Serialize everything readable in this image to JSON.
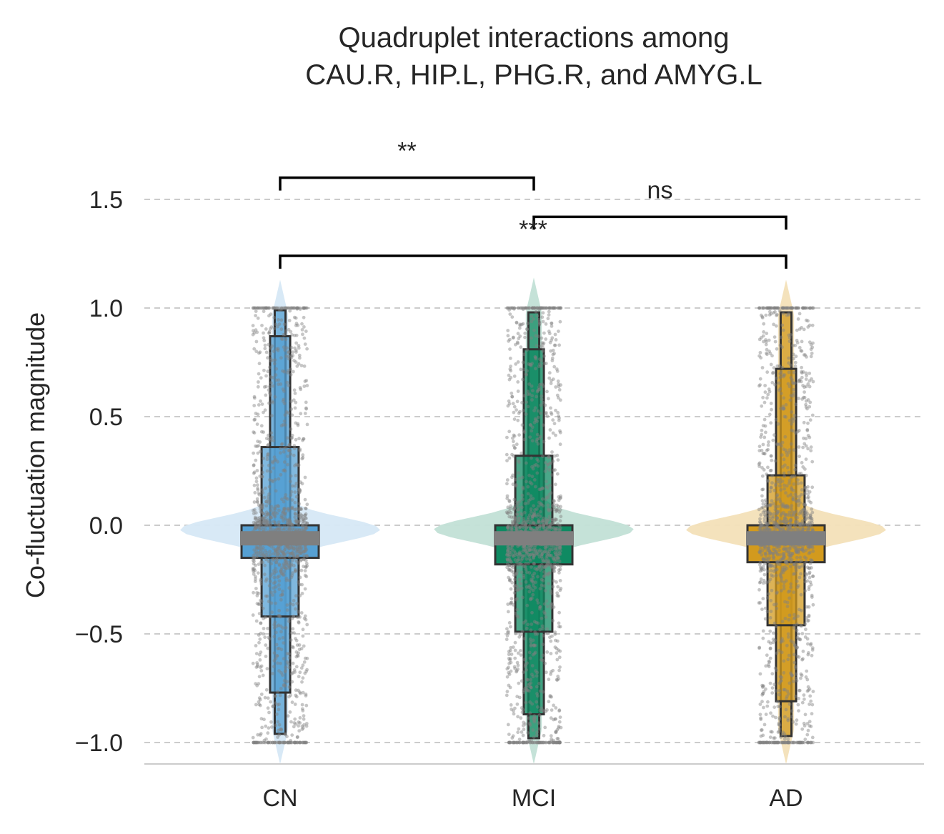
{
  "chart_data": {
    "type": "boxen+violin+strip",
    "title_lines": [
      "Quadruplet interactions among",
      "CAU.R, HIP.L, PHG.R, and AMYG.L"
    ],
    "xlabel": "",
    "ylabel": "Co-fluctuation magnitude",
    "ylim": [
      -1.1,
      1.65
    ],
    "yticks": [
      -1.0,
      -0.5,
      0.0,
      0.5,
      1.0,
      1.5
    ],
    "ytick_labels": [
      "−1.0",
      "−0.5",
      "0.0",
      "0.5",
      "1.0",
      "1.5"
    ],
    "grid": "horizontal dashed",
    "categories": [
      "CN",
      "MCI",
      "AD"
    ],
    "colors": [
      "#56a0d3",
      "#0f8a62",
      "#d29a1e"
    ],
    "violin_colors": [
      "#d6e8f6",
      "#c2e0d6",
      "#f3e0b8"
    ],
    "point_color": "#808080",
    "groups": [
      {
        "name": "CN",
        "median": -0.06,
        "boxes": [
          {
            "low": -0.15,
            "high": 0.0
          },
          {
            "low": -0.42,
            "high": 0.36
          },
          {
            "low": -0.77,
            "high": 0.87
          },
          {
            "low": -0.96,
            "high": 0.99
          }
        ],
        "violin_range": [
          -1.1,
          1.13
        ]
      },
      {
        "name": "MCI",
        "median": -0.06,
        "boxes": [
          {
            "low": -0.18,
            "high": 0.0
          },
          {
            "low": -0.49,
            "high": 0.32
          },
          {
            "low": -0.87,
            "high": 0.81
          },
          {
            "low": -0.98,
            "high": 0.98
          }
        ],
        "violin_range": [
          -1.1,
          1.14
        ]
      },
      {
        "name": "AD",
        "median": -0.06,
        "boxes": [
          {
            "low": -0.17,
            "high": 0.0
          },
          {
            "low": -0.46,
            "high": 0.23
          },
          {
            "low": -0.81,
            "high": 0.72
          },
          {
            "low": -0.97,
            "high": 0.98
          }
        ],
        "violin_range": [
          -1.1,
          1.13
        ]
      }
    ],
    "significance": [
      {
        "from": "CN",
        "to": "MCI",
        "label": "**",
        "y": 1.6
      },
      {
        "from": "MCI",
        "to": "AD",
        "label": "ns",
        "y": 1.42
      },
      {
        "from": "CN",
        "to": "AD",
        "label": "***",
        "y": 1.24
      }
    ]
  }
}
